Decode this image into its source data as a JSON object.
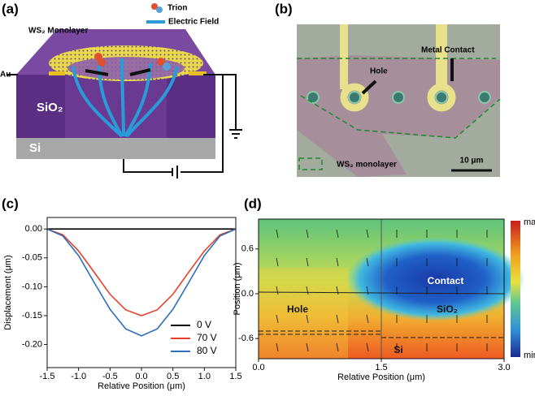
{
  "figure": {
    "labels": [
      "(a)",
      "(b)",
      "(c)",
      "(d)"
    ]
  },
  "diagram": {
    "monolayer": "WS₂ Monolayer",
    "trion": "Trion",
    "field": "Electric Field",
    "au": "Au",
    "sio2": "SiO₂",
    "si": "Si"
  },
  "micrograph": {
    "hole": "Hole",
    "contact": "Metal Contact",
    "monolayer": "WS₂ monolayer",
    "scale": "10 μm"
  },
  "chart_data": [
    {
      "type": "line",
      "x_label": "Relative Position (μm)",
      "y_label": "Displacement (μm)",
      "x": [
        -1.5,
        -1.25,
        -1,
        -0.75,
        -0.5,
        -0.25,
        0,
        0.25,
        0.5,
        0.75,
        1,
        1.25,
        1.5
      ],
      "series": [
        {
          "name": "0 V",
          "color": "#000000",
          "values": [
            0,
            0,
            0,
            0,
            0,
            0,
            0,
            0,
            0,
            0,
            0,
            0,
            0
          ]
        },
        {
          "name": "70 V",
          "color": "#e8402a",
          "values": [
            0,
            -0.01,
            -0.038,
            -0.075,
            -0.113,
            -0.14,
            -0.15,
            -0.14,
            -0.113,
            -0.075,
            -0.038,
            -0.01,
            0
          ]
        },
        {
          "name": "80 V",
          "color": "#2a6fb8",
          "values": [
            0,
            -0.012,
            -0.046,
            -0.093,
            -0.139,
            -0.173,
            -0.185,
            -0.173,
            -0.139,
            -0.093,
            -0.046,
            -0.012,
            0
          ]
        }
      ],
      "xlim": [
        -1.5,
        1.5
      ],
      "xticks": [
        -1.5,
        {
          "value": -1,
          "label": "-1.0"
        },
        -0.5,
        {
          "value": 0,
          "label": "0.0"
        },
        0.5,
        {
          "value": 1,
          "label": "1.0"
        },
        1.5
      ],
      "ylim": [
        -0.24,
        0.02
      ],
      "yticks": [
        {
          "value": 0,
          "label": "0.00"
        },
        -0.05,
        {
          "value": -0.1,
          "label": "-0.10"
        },
        -0.15,
        {
          "value": -0.2,
          "label": "-0.20"
        }
      ],
      "legend": "lower right"
    },
    {
      "type": "heatmap",
      "x_label": "Relative Position (μm)",
      "y_label": "Position (μm)",
      "xlim": [
        0,
        3
      ],
      "xticks": [
        {
          "value": 0,
          "label": "0.0"
        },
        1.5,
        {
          "value": 3,
          "label": "3.0"
        }
      ],
      "ylim": [
        -0.87,
        1.0
      ],
      "yticks": [
        0.6,
        {
          "value": 0,
          "label": "0.0"
        },
        -0.6
      ],
      "colorbar_labels": [
        "max",
        "min"
      ],
      "annotations": [
        "Contact",
        "Hole",
        "SiO₂",
        "Si"
      ]
    }
  ]
}
